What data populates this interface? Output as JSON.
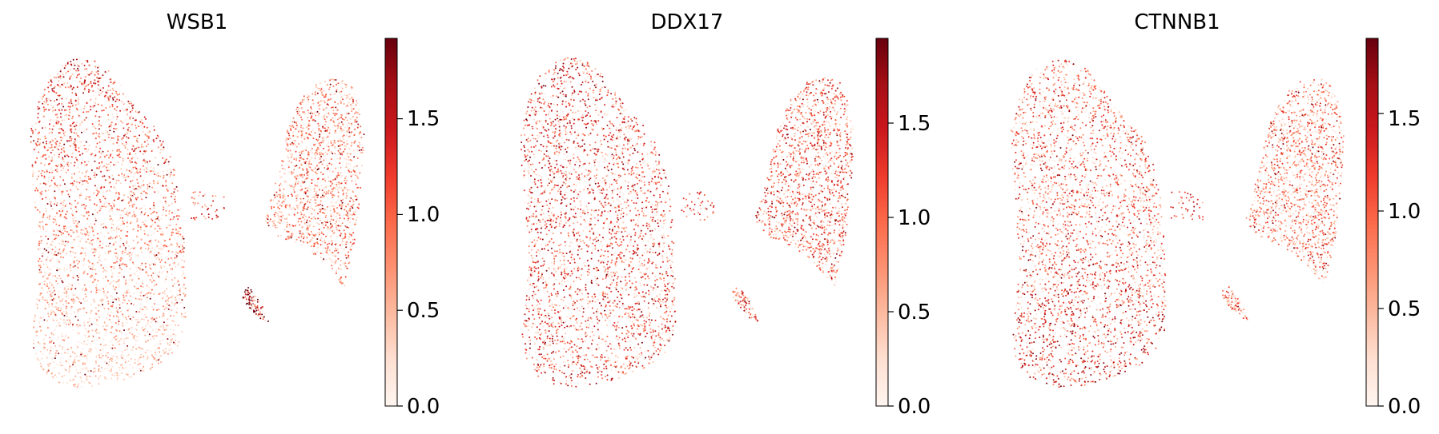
{
  "chart_data": [
    {
      "type": "scatter",
      "title": "WSB1",
      "colormap": "Reds",
      "colorbar": {
        "min": 0.0,
        "max": 1.92,
        "ticks": [
          "0.0",
          "0.5",
          "1.0",
          "1.5"
        ],
        "tick_values": [
          0.0,
          0.5,
          1.0,
          1.5
        ]
      },
      "axes_visible": false,
      "grid": false,
      "regions": [
        {
          "name": "large cluster top",
          "mean_expression": 1.05
        },
        {
          "name": "large cluster middle",
          "mean_expression": 0.7
        },
        {
          "name": "large cluster bottom",
          "mean_expression": 0.35
        },
        {
          "name": "right cluster",
          "mean_expression": 0.7
        },
        {
          "name": "small cluster",
          "mean_expression": 1.5
        },
        {
          "name": "bridge cells",
          "mean_expression": 1.0
        }
      ]
    },
    {
      "type": "scatter",
      "title": "DDX17",
      "colormap": "Reds",
      "colorbar": {
        "min": 0.0,
        "max": 1.95,
        "ticks": [
          "0.0",
          "0.5",
          "1.0",
          "1.5"
        ],
        "tick_values": [
          0.0,
          0.5,
          1.0,
          1.5
        ]
      },
      "axes_visible": false,
      "grid": false,
      "regions": [
        {
          "name": "large cluster top",
          "mean_expression": 1.1
        },
        {
          "name": "large cluster middle",
          "mean_expression": 0.95
        },
        {
          "name": "large cluster bottom",
          "mean_expression": 1.0
        },
        {
          "name": "right cluster",
          "mean_expression": 0.9
        },
        {
          "name": "small cluster",
          "mean_expression": 0.9
        },
        {
          "name": "bridge cells",
          "mean_expression": 1.0
        }
      ]
    },
    {
      "type": "scatter",
      "title": "CTNNB1",
      "colormap": "Reds",
      "colorbar": {
        "min": 0.0,
        "max": 1.88,
        "ticks": [
          "0.0",
          "0.5",
          "1.0",
          "1.5"
        ],
        "tick_values": [
          0.0,
          0.5,
          1.0,
          1.5
        ]
      },
      "axes_visible": false,
      "grid": false,
      "regions": [
        {
          "name": "large cluster top",
          "mean_expression": 0.85
        },
        {
          "name": "large cluster middle",
          "mean_expression": 0.85
        },
        {
          "name": "large cluster bottom",
          "mean_expression": 1.1
        },
        {
          "name": "right cluster",
          "mean_expression": 0.75
        },
        {
          "name": "small cluster",
          "mean_expression": 0.8
        },
        {
          "name": "bridge cells",
          "mean_expression": 0.9
        }
      ]
    }
  ]
}
